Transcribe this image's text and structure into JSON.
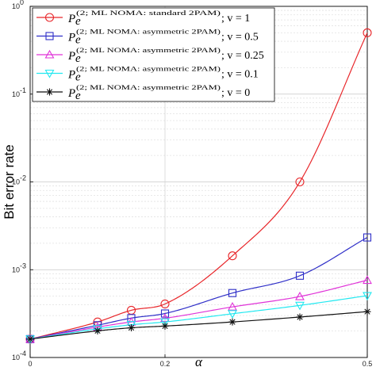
{
  "chart_data": {
    "type": "line",
    "xlabel": "α",
    "ylabel": "Bit error rate",
    "xlim": [
      0,
      0.5
    ],
    "ylim": [
      0.0001,
      1
    ],
    "yscale": "log",
    "grid": true,
    "legend_position": "top-left",
    "x_ticks": [
      {
        "value": 0,
        "label": "0"
      },
      {
        "value": 0.2,
        "label": "0.2"
      },
      {
        "value": 0.5,
        "label": "0.5"
      }
    ],
    "y_ticks": [
      {
        "value": 1,
        "label": "10",
        "exp": "0"
      },
      {
        "value": 0.1,
        "label": "10",
        "exp": "-1"
      },
      {
        "value": 0.01,
        "label": "10",
        "exp": "-2"
      },
      {
        "value": 0.001,
        "label": "10",
        "exp": "-3"
      },
      {
        "value": 0.0001,
        "label": "10",
        "exp": "-4"
      }
    ],
    "series": [
      {
        "label_main": "P",
        "label_sub": "e",
        "label_sup": "(2; ML NOMA: standard 2PAM)",
        "label_tail": "; v = 1",
        "color": "#e8262a",
        "marker": "circle",
        "x": [
          0,
          0.1,
          0.15,
          0.2,
          0.3,
          0.4,
          0.5
        ],
        "y": [
          0.000162,
          0.000254,
          0.000345,
          0.000407,
          0.00144,
          0.01,
          0.5
        ]
      },
      {
        "label_main": "P",
        "label_sub": "e",
        "label_sup": "(2; ML NOMA: asymmetric 2PAM)",
        "label_tail": "; v = 0.5",
        "color": "#2f2fc8",
        "marker": "square",
        "x": [
          0,
          0.1,
          0.15,
          0.2,
          0.3,
          0.4,
          0.5
        ],
        "y": [
          0.000162,
          0.000233,
          0.000281,
          0.000317,
          0.000542,
          0.000854,
          0.00233
        ]
      },
      {
        "label_main": "P",
        "label_sub": "e",
        "label_sup": "(2; ML NOMA: asymmetric 2PAM)",
        "label_tail": "; v = 0.25",
        "color": "#e033d8",
        "marker": "triangle-up",
        "x": [
          0,
          0.1,
          0.15,
          0.2,
          0.3,
          0.4,
          0.5
        ],
        "y": [
          0.000162,
          0.000222,
          0.000254,
          0.00028,
          0.000377,
          0.000495,
          0.000759
        ]
      },
      {
        "label_main": "P",
        "label_sub": "e",
        "label_sup": "(2; ML NOMA: asymmetric 2PAM)",
        "label_tail": "; v = 0.1",
        "color": "#22e8f0",
        "marker": "triangle-down",
        "x": [
          0,
          0.1,
          0.15,
          0.2,
          0.3,
          0.4,
          0.5
        ],
        "y": [
          0.000162,
          0.000212,
          0.000236,
          0.000254,
          0.000315,
          0.000392,
          0.000506
        ]
      },
      {
        "label_main": "P",
        "label_sub": "e",
        "label_sup": "(2; ML NOMA: asymmetric 2PAM)",
        "label_tail": "; v = 0",
        "color": "#111111",
        "marker": "star",
        "x": [
          0,
          0.1,
          0.15,
          0.2,
          0.3,
          0.4,
          0.5
        ],
        "y": [
          0.000162,
          0.000201,
          0.000218,
          0.000228,
          0.000254,
          0.000289,
          0.000333
        ]
      }
    ]
  }
}
